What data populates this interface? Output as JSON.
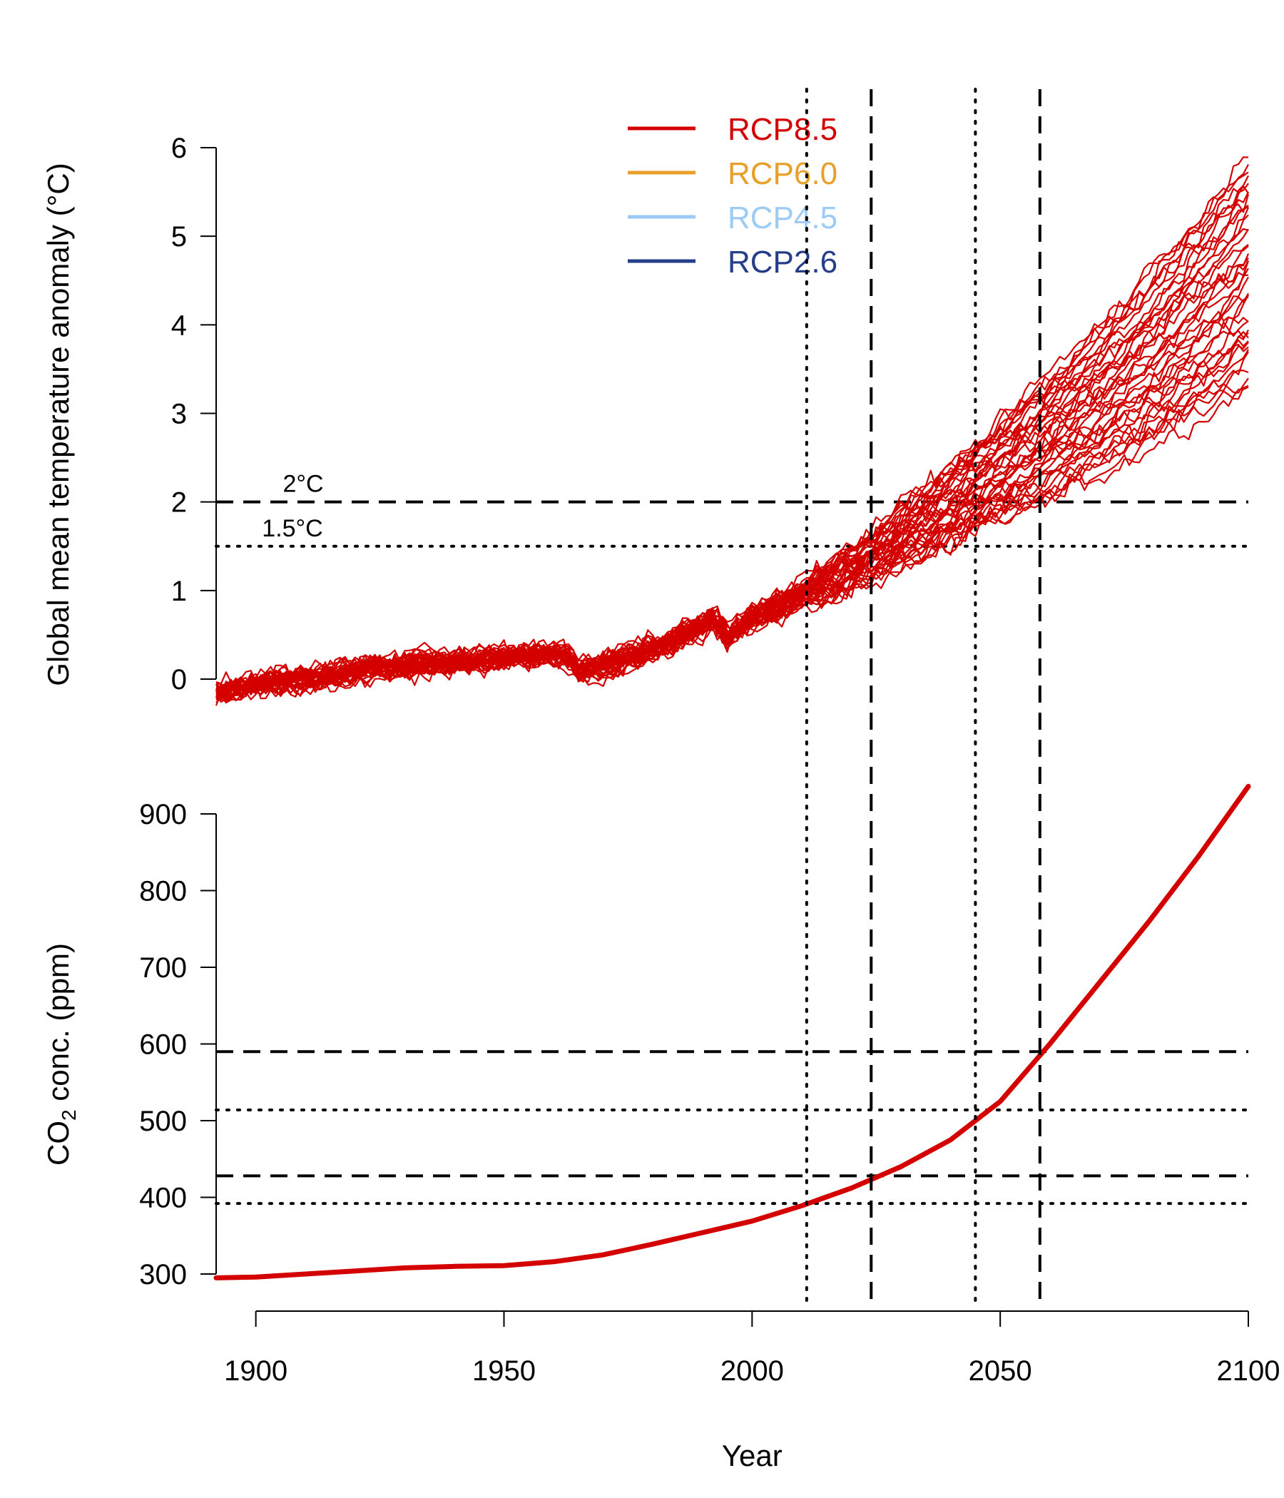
{
  "chart_data": [
    {
      "type": "line",
      "panel": "top",
      "ylabel": "Global mean temperature anomaly (°C)",
      "xlim": [
        1892,
        2100
      ],
      "ylim": [
        -0.6,
        6.5
      ],
      "y_ticks": [
        0,
        1,
        2,
        3,
        4,
        5,
        6
      ],
      "legend": {
        "placement": "top-center",
        "entries": [
          {
            "label": "RCP8.5",
            "color": "#d40000"
          },
          {
            "label": "RCP6.0",
            "color": "#e8a02a"
          },
          {
            "label": "RCP4.5",
            "color": "#9ccbf5"
          },
          {
            "label": "RCP2.6",
            "color": "#253e8a"
          }
        ]
      },
      "thresholds": [
        {
          "label": "2°C",
          "value": 2.0,
          "style": "dashed",
          "crossing_year": 2024,
          "ensemble_spread_crossing_year": 2058
        },
        {
          "label": "1.5°C",
          "value": 1.5,
          "style": "dotted",
          "crossing_year": 2011,
          "ensemble_spread_crossing_year": 2045
        }
      ],
      "series_color": "#d40000",
      "ensemble_member_count": 40,
      "ensemble_mean": {
        "x": [
          1892,
          1900,
          1910,
          1920,
          1930,
          1940,
          1950,
          1960,
          1963,
          1965,
          1970,
          1980,
          1990,
          1992,
          1995,
          2000,
          2010,
          2020,
          2030,
          2040,
          2050,
          2060,
          2070,
          2080,
          2090,
          2100
        ],
        "y": [
          -0.15,
          -0.05,
          0.0,
          0.1,
          0.15,
          0.2,
          0.25,
          0.28,
          0.25,
          0.1,
          0.15,
          0.35,
          0.6,
          0.7,
          0.5,
          0.7,
          0.95,
          1.25,
          1.6,
          1.95,
          2.35,
          2.75,
          3.15,
          3.6,
          4.1,
          4.6
        ]
      },
      "ensemble_spread": {
        "x": [
          1892,
          1960,
          1980,
          2000,
          2020,
          2040,
          2060,
          2080,
          2100
        ],
        "low": [
          -0.35,
          0.0,
          0.0,
          0.3,
          0.85,
          1.45,
          2.05,
          2.8,
          3.4
        ],
        "high": [
          0.1,
          0.5,
          0.65,
          1.1,
          1.55,
          2.35,
          3.35,
          4.55,
          6.4
        ]
      }
    },
    {
      "type": "line",
      "panel": "bottom",
      "title": "",
      "xlabel": "Year",
      "ylabel_main": "CO",
      "ylabel_sub": "2",
      "ylabel_rest": " conc. (ppm)",
      "xlim": [
        1892,
        2100
      ],
      "ylim": [
        250,
        940
      ],
      "x_ticks": [
        1900,
        1950,
        2000,
        2050,
        2100
      ],
      "y_ticks": [
        300,
        400,
        500,
        600,
        700,
        800,
        900
      ],
      "series": [
        {
          "color": "#d40000",
          "x": [
            1892,
            1900,
            1910,
            1920,
            1930,
            1940,
            1950,
            1960,
            1970,
            1980,
            1990,
            2000,
            2010,
            2020,
            2030,
            2040,
            2050,
            2060,
            2070,
            2080,
            2090,
            2100
          ],
          "y": [
            295,
            296,
            300,
            304,
            308,
            310,
            311,
            316,
            325,
            339,
            354,
            369,
            389,
            412,
            440,
            475,
            525,
            600,
            680,
            760,
            845,
            936
          ]
        }
      ],
      "thresholds": [
        {
          "value": 590,
          "style": "dashed"
        },
        {
          "value": 514,
          "style": "dotted"
        },
        {
          "value": 428,
          "style": "dashed"
        },
        {
          "value": 392,
          "style": "dotted"
        }
      ]
    }
  ],
  "vertical_markers": [
    {
      "year": 2011,
      "style": "dotted"
    },
    {
      "year": 2024,
      "style": "dashed"
    },
    {
      "year": 2045,
      "style": "dotted"
    },
    {
      "year": 2058,
      "style": "dashed"
    }
  ]
}
